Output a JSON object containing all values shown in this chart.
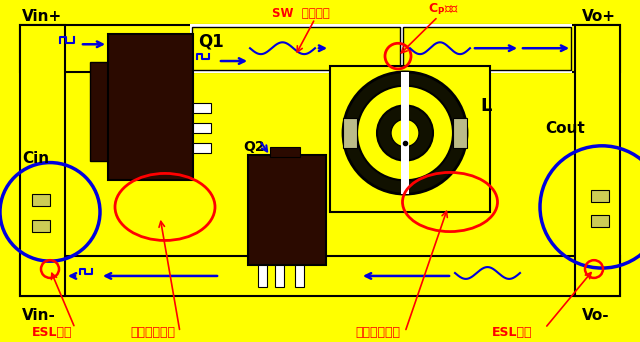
{
  "yellow": "#FFFF00",
  "dark_brown": "#2B0A00",
  "blue": "#0000DD",
  "red": "#FF0000",
  "black": "#000000",
  "white": "#FFFFFF",
  "olive": "#888855",
  "fig_width": 6.4,
  "fig_height": 3.42,
  "dpi": 100,
  "labels": {
    "vin_plus": "Vin+",
    "vin_minus": "Vin-",
    "vo_plus": "Vo+",
    "vo_minus": "Vo-",
    "cin": "Cin",
    "cout": "Cout",
    "q1": "Q1",
    "q2": "Q2",
    "l": "L",
    "sw_pad": "SW  焊盘太大",
    "cp": "$C_P$太大",
    "esl_left": "ESL太大",
    "esl_right": "ESL太大",
    "loop1": "回路面积太大",
    "loop2": "回路面积太大"
  }
}
